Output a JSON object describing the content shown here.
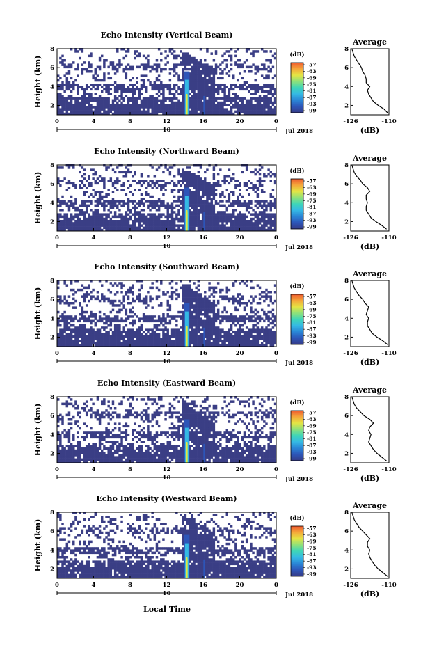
{
  "chart_data": [
    {
      "type": "heatmap",
      "title": "Echo Intensity (Vertical Beam)",
      "ylabel": "Height (km)",
      "x_ticks": [
        "0",
        "4",
        "8",
        "12",
        "16",
        "20",
        "0"
      ],
      "y_ticks": [
        "2",
        "4",
        "6",
        "8"
      ],
      "date_label": "10",
      "month_label": "Jul 2018",
      "xlim": [
        0,
        24
      ],
      "ylim": [
        1,
        8
      ],
      "colorbar_unit": "(dB)",
      "colorbar_ticks": [
        "-57",
        "-63",
        "-69",
        "-75",
        "-81",
        "-87",
        "-93",
        "-99"
      ],
      "profile_title": "Average",
      "profile_x_ticks": [
        "-126",
        "-110"
      ],
      "profile_xlabel": "(dB)",
      "profile_y_ticks": [
        "2",
        "4",
        "6",
        "8"
      ],
      "profile_xlim": [
        -126,
        -110
      ],
      "profile": {
        "height_km": [
          1.2,
          1.6,
          2.0,
          2.4,
          2.8,
          3.2,
          3.6,
          4.0,
          4.4,
          4.8,
          5.2,
          5.6,
          6.0,
          6.4,
          6.8,
          7.2,
          7.6,
          8.0
        ],
        "db": [
          -110.5,
          -112,
          -114.5,
          -116.5,
          -117.5,
          -118.5,
          -119,
          -118,
          -119.5,
          -119.5,
          -120,
          -121,
          -121.5,
          -122.5,
          -123.5,
          -124.5,
          -125,
          -125.5
        ]
      }
    },
    {
      "type": "heatmap",
      "title": "Echo Intensity (Northward Beam)",
      "ylabel": "Height (km)",
      "x_ticks": [
        "0",
        "4",
        "8",
        "12",
        "16",
        "20",
        "0"
      ],
      "y_ticks": [
        "2",
        "4",
        "6",
        "8"
      ],
      "date_label": "10",
      "month_label": "Jul 2018",
      "xlim": [
        0,
        24
      ],
      "ylim": [
        1,
        8
      ],
      "colorbar_unit": "(dB)",
      "colorbar_ticks": [
        "-57",
        "-63",
        "-69",
        "-75",
        "-81",
        "-87",
        "-93",
        "-99"
      ],
      "profile_title": "Average",
      "profile_x_ticks": [
        "-126",
        "-110"
      ],
      "profile_xlabel": "(dB)",
      "profile_y_ticks": [
        "2",
        "4",
        "6",
        "8"
      ],
      "profile_xlim": [
        -126,
        -110
      ],
      "profile": {
        "height_km": [
          1.2,
          1.6,
          2.0,
          2.4,
          2.8,
          3.2,
          3.6,
          4.0,
          4.4,
          4.8,
          5.2,
          5.6,
          6.0,
          6.4,
          6.8,
          7.2,
          7.6,
          8.0
        ],
        "db": [
          -111,
          -113,
          -115.5,
          -117.5,
          -118.5,
          -119.5,
          -119.5,
          -119,
          -119.5,
          -119.5,
          -118,
          -119,
          -121,
          -122,
          -123.5,
          -124.5,
          -125,
          -125.5
        ]
      }
    },
    {
      "type": "heatmap",
      "title": "Echo Intensity (Southward Beam)",
      "ylabel": "Height (km)",
      "x_ticks": [
        "0",
        "4",
        "8",
        "12",
        "16",
        "20",
        "0"
      ],
      "y_ticks": [
        "2",
        "4",
        "6",
        "8"
      ],
      "date_label": "10",
      "month_label": "Jul 2018",
      "xlim": [
        0,
        24
      ],
      "ylim": [
        1,
        8
      ],
      "colorbar_unit": "(dB)",
      "colorbar_ticks": [
        "-57",
        "-63",
        "-69",
        "-75",
        "-81",
        "-87",
        "-93",
        "-99"
      ],
      "profile_title": "Average",
      "profile_x_ticks": [
        "-126",
        "-110"
      ],
      "profile_xlabel": "(dB)",
      "profile_y_ticks": [
        "2",
        "4",
        "6",
        "8"
      ],
      "profile_xlim": [
        -126,
        -110
      ],
      "profile": {
        "height_km": [
          1.2,
          1.6,
          2.0,
          2.4,
          2.8,
          3.2,
          3.6,
          4.0,
          4.4,
          4.8,
          5.2,
          5.6,
          6.0,
          6.4,
          6.8,
          7.2,
          7.6,
          8.0
        ],
        "db": [
          -110.5,
          -112.5,
          -115,
          -117,
          -118,
          -119,
          -119,
          -118.5,
          -119.5,
          -119,
          -118.5,
          -120,
          -121,
          -122.5,
          -123.5,
          -124.5,
          -125,
          -125.5
        ]
      }
    },
    {
      "type": "heatmap",
      "title": "Echo Intensity (Eastward Beam)",
      "ylabel": "Height (km)",
      "x_ticks": [
        "0",
        "4",
        "8",
        "12",
        "16",
        "20",
        "0"
      ],
      "y_ticks": [
        "2",
        "4",
        "6",
        "8"
      ],
      "date_label": "10",
      "month_label": "Jul 2018",
      "xlim": [
        0,
        24
      ],
      "ylim": [
        1,
        8
      ],
      "colorbar_unit": "(dB)",
      "colorbar_ticks": [
        "-57",
        "-63",
        "-69",
        "-75",
        "-81",
        "-87",
        "-93",
        "-99"
      ],
      "profile_title": "Average",
      "profile_x_ticks": [
        "-126",
        "-110"
      ],
      "profile_xlabel": "(dB)",
      "profile_y_ticks": [
        "2",
        "4",
        "6",
        "8"
      ],
      "profile_xlim": [
        -126,
        -110
      ],
      "profile": {
        "height_km": [
          1.2,
          1.6,
          2.0,
          2.4,
          2.8,
          3.2,
          3.6,
          4.0,
          4.4,
          4.8,
          5.2,
          5.6,
          6.0,
          6.4,
          6.8,
          7.2,
          7.6,
          8.0
        ],
        "db": [
          -111,
          -113,
          -115,
          -116.5,
          -117.5,
          -118.5,
          -118,
          -117.5,
          -118.5,
          -118,
          -116.5,
          -118,
          -120.5,
          -122,
          -123.5,
          -124.5,
          -125,
          -125.5
        ]
      }
    },
    {
      "type": "heatmap",
      "title": "Echo Intensity (Westward Beam)",
      "ylabel": "Height (km)",
      "x_ticks": [
        "0",
        "4",
        "8",
        "12",
        "16",
        "20",
        "0"
      ],
      "y_ticks": [
        "2",
        "4",
        "6",
        "8"
      ],
      "date_label": "10",
      "month_label": "Jul 2018",
      "xlim": [
        0,
        24
      ],
      "ylim": [
        1,
        8
      ],
      "colorbar_unit": "(dB)",
      "colorbar_ticks": [
        "-57",
        "-63",
        "-69",
        "-75",
        "-81",
        "-87",
        "-93",
        "-99"
      ],
      "profile_title": "Average",
      "profile_x_ticks": [
        "-126",
        "-110"
      ],
      "profile_xlabel": "(dB)",
      "profile_y_ticks": [
        "2",
        "4",
        "6",
        "8"
      ],
      "profile_xlim": [
        -126,
        -110
      ],
      "profile": {
        "height_km": [
          1.2,
          1.6,
          2.0,
          2.4,
          2.8,
          3.2,
          3.6,
          4.0,
          4.4,
          4.8,
          5.2,
          5.6,
          6.0,
          6.4,
          6.8,
          7.2,
          7.6,
          8.0
        ],
        "db": [
          -110.5,
          -112.5,
          -114.5,
          -116,
          -117,
          -118,
          -118.5,
          -118,
          -119,
          -119,
          -118,
          -119.5,
          -121,
          -122.5,
          -123.5,
          -124.5,
          -125,
          -125.5
        ]
      }
    }
  ],
  "xlabel": "Local Time",
  "colors": {
    "background_echo": "#3a3e85",
    "colorbar": [
      "#353a86",
      "#2d55b8",
      "#2a86d6",
      "#35b9e4",
      "#3fd5b8",
      "#8ee17a",
      "#e4e544",
      "#f5a83a",
      "#ee5a2f"
    ]
  }
}
